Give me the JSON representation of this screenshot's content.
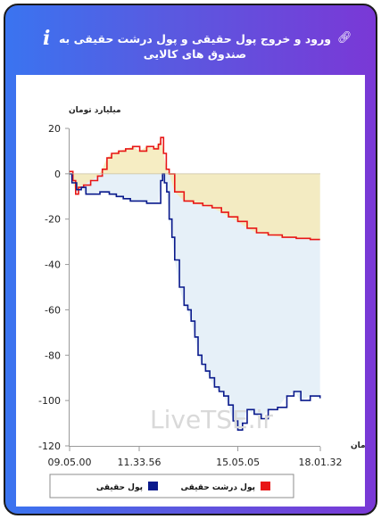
{
  "header": {
    "title": "ورود و خروج پول حقیقی و پول درشت حقیقی به صندوق های کالایی",
    "info_icon": "info-icon",
    "link_icon": "link-icon"
  },
  "watermark": "LiveTSE.ir",
  "colors": {
    "real_money": "#0a1a8c",
    "big_real_money": "#e81515",
    "real_money_fill": "#e6f0f8",
    "big_real_money_fill": "#f5eab8",
    "card_gradient_start": "#3a74f0",
    "card_gradient_end": "#7a38d6"
  },
  "chart_data": {
    "type": "area",
    "ylabel": "میلیارد تومان",
    "xlabel": "زمان",
    "ylim": [
      -120,
      20
    ],
    "yticks": [
      "20",
      "0",
      "-20",
      "-40",
      "-60",
      "-80",
      "-100",
      "-120"
    ],
    "xticks": [
      "09.05.00",
      "11.33.56",
      "15.05.05",
      "18.01.32"
    ],
    "xlim_seconds": [
      32700,
      64892
    ],
    "grid": false,
    "legend_position": "bottom",
    "series": [
      {
        "name": "پول حقیقی",
        "color": "#0a1a8c",
        "points": [
          [
            "09:05",
            0
          ],
          [
            "09:10",
            -4
          ],
          [
            "09:20",
            -7
          ],
          [
            "09:30",
            -6
          ],
          [
            "09:40",
            -9
          ],
          [
            "09:55",
            -9
          ],
          [
            "10:10",
            -8
          ],
          [
            "10:30",
            -9
          ],
          [
            "10:45",
            -10
          ],
          [
            "11:00",
            -11
          ],
          [
            "11:15",
            -12
          ],
          [
            "11:30",
            -12
          ],
          [
            "11:50",
            -13
          ],
          [
            "12:05",
            -13
          ],
          [
            "12:15",
            -13
          ],
          [
            "12:20",
            -3
          ],
          [
            "12:24",
            0
          ],
          [
            "12:28",
            -4
          ],
          [
            "12:33",
            -8
          ],
          [
            "12:38",
            -20
          ],
          [
            "12:44",
            -28
          ],
          [
            "12:50",
            -38
          ],
          [
            "13:00",
            -50
          ],
          [
            "13:10",
            -58
          ],
          [
            "13:18",
            -60
          ],
          [
            "13:25",
            -65
          ],
          [
            "13:33",
            -72
          ],
          [
            "13:40",
            -80
          ],
          [
            "13:48",
            -84
          ],
          [
            "13:56",
            -87
          ],
          [
            "14:05",
            -90
          ],
          [
            "14:15",
            -94
          ],
          [
            "14:25",
            -96
          ],
          [
            "14:35",
            -98
          ],
          [
            "14:45",
            -102
          ],
          [
            "14:55",
            -109
          ],
          [
            "15:05",
            -113
          ],
          [
            "15:15",
            -110
          ],
          [
            "15:25",
            -104
          ],
          [
            "15:40",
            -106
          ],
          [
            "15:55",
            -108
          ],
          [
            "16:10",
            -104
          ],
          [
            "16:30",
            -103
          ],
          [
            "16:50",
            -98
          ],
          [
            "17:05",
            -96
          ],
          [
            "17:20",
            -100
          ],
          [
            "17:40",
            -98
          ],
          [
            "18:01",
            -99
          ]
        ]
      },
      {
        "name": "پول درشت حقیقی",
        "color": "#e81515",
        "points": [
          [
            "09:05",
            1
          ],
          [
            "09:12",
            -3
          ],
          [
            "09:18",
            -9
          ],
          [
            "09:24",
            -6
          ],
          [
            "09:35",
            -5
          ],
          [
            "09:50",
            -3
          ],
          [
            "10:05",
            -1
          ],
          [
            "10:15",
            2
          ],
          [
            "10:25",
            7
          ],
          [
            "10:35",
            9
          ],
          [
            "10:50",
            10
          ],
          [
            "11:05",
            11
          ],
          [
            "11:20",
            12
          ],
          [
            "11:35",
            10
          ],
          [
            "11:50",
            12
          ],
          [
            "12:05",
            11
          ],
          [
            "12:15",
            13
          ],
          [
            "12:20",
            16
          ],
          [
            "12:26",
            9
          ],
          [
            "12:32",
            2
          ],
          [
            "12:38",
            0
          ],
          [
            "12:50",
            -8
          ],
          [
            "13:10",
            -12
          ],
          [
            "13:30",
            -13
          ],
          [
            "13:50",
            -14
          ],
          [
            "14:10",
            -15
          ],
          [
            "14:30",
            -17
          ],
          [
            "14:45",
            -19
          ],
          [
            "15:05",
            -21
          ],
          [
            "15:25",
            -24
          ],
          [
            "15:45",
            -26
          ],
          [
            "16:10",
            -27
          ],
          [
            "16:40",
            -28
          ],
          [
            "17:10",
            -28.5
          ],
          [
            "17:40",
            -29
          ],
          [
            "18:01",
            -29
          ]
        ]
      }
    ]
  }
}
